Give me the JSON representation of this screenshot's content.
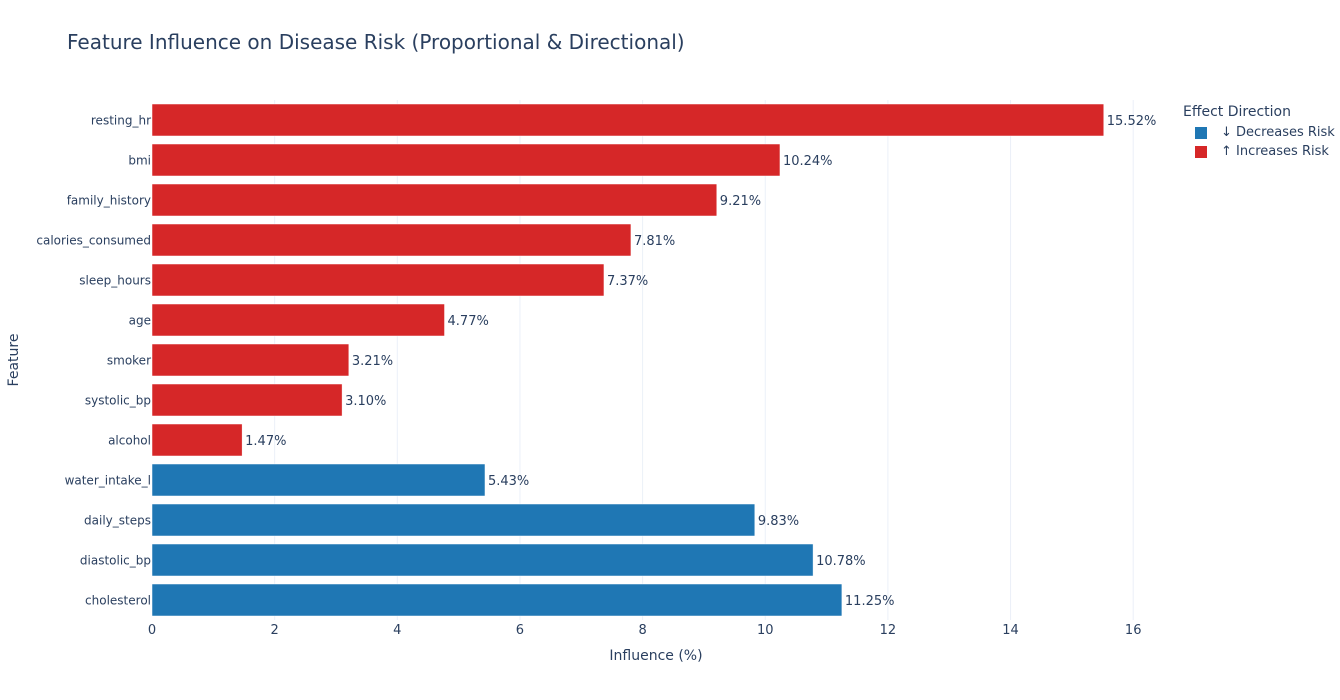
{
  "chart_data": {
    "type": "bar",
    "orientation": "horizontal",
    "title": "Feature Influence on Disease Risk (Proportional & Directional)",
    "xlabel": "Influence (%)",
    "ylabel": "Feature",
    "xlim": [
      0,
      16.6
    ],
    "xticks": [
      0,
      2,
      4,
      6,
      8,
      10,
      12,
      14,
      16
    ],
    "grid": true,
    "legend_title": "Effect Direction",
    "legend_position": "top-right",
    "series": [
      {
        "name": "↓ Decreases Risk",
        "color": "#1f77b4",
        "categories": [
          "water_intake_l",
          "daily_steps",
          "diastolic_bp",
          "cholesterol"
        ],
        "values": [
          5.43,
          9.83,
          10.78,
          11.25
        ],
        "labels": [
          "5.43%",
          "9.83%",
          "10.78%",
          "11.25%"
        ]
      },
      {
        "name": "↑ Increases Risk",
        "color": "#d62728",
        "categories": [
          "resting_hr",
          "bmi",
          "family_history",
          "calories_consumed",
          "sleep_hours",
          "age",
          "smoker",
          "systolic_bp",
          "alcohol"
        ],
        "values": [
          15.52,
          10.24,
          9.21,
          7.81,
          7.37,
          4.77,
          3.21,
          3.1,
          1.47
        ],
        "labels": [
          "15.52%",
          "10.24%",
          "9.21%",
          "7.81%",
          "7.37%",
          "4.77%",
          "3.21%",
          "3.10%",
          "1.47%"
        ]
      }
    ],
    "category_order_top_to_bottom": [
      "resting_hr",
      "bmi",
      "family_history",
      "calories_consumed",
      "sleep_hours",
      "age",
      "smoker",
      "systolic_bp",
      "alcohol",
      "water_intake_l",
      "daily_steps",
      "diastolic_bp",
      "cholesterol"
    ]
  }
}
